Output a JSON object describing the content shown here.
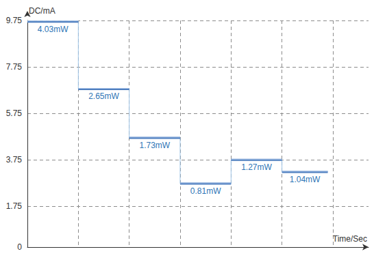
{
  "chart_data": {
    "type": "line",
    "line_style": "step",
    "y_label": "DC/mA",
    "x_label": "Time/Sec",
    "bins": [
      0,
      1,
      2,
      3,
      4,
      5,
      5.9
    ],
    "values": [
      9.7,
      6.8,
      4.7,
      2.73,
      3.75,
      3.23
    ],
    "annotations": [
      "4.03mW",
      "2.65mW",
      "1.73mW",
      "0.81mW",
      "1.27mW",
      "1.04mW"
    ],
    "color": "#4f7fbf",
    "xlim": [
      0,
      6.7
    ],
    "xticks": [
      0,
      1,
      2,
      3,
      4,
      5,
      6
    ],
    "ylim": [
      0,
      9.75
    ],
    "yticks": [
      0,
      1.75,
      3.75,
      5.75,
      7.75,
      9.75
    ],
    "grid": true,
    "tick_labels": "y"
  }
}
